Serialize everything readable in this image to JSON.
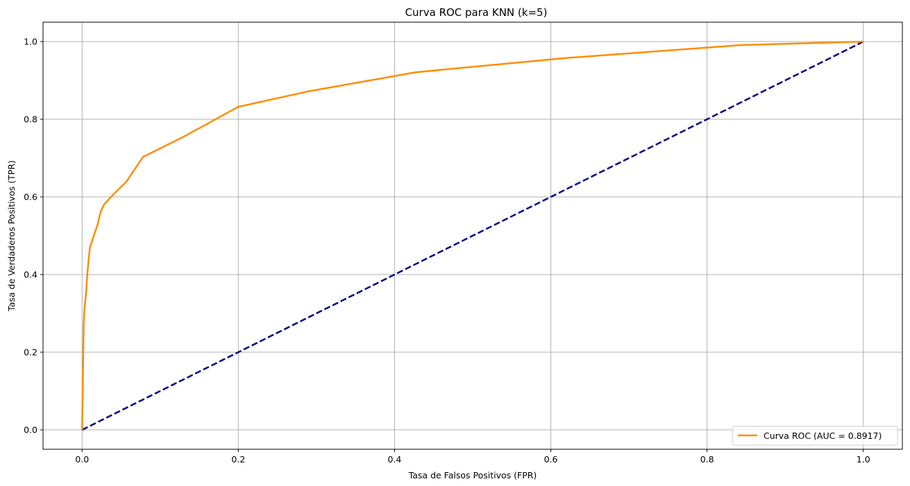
{
  "chart_data": {
    "type": "line",
    "title": "Curva ROC para KNN (k=5)",
    "xlabel": "Tasa de Falsos Positivos (FPR)",
    "ylabel": "Tasa de Verdaderos Positivos (TPR)",
    "xlim": [
      -0.05,
      1.05
    ],
    "ylim": [
      -0.05,
      1.05
    ],
    "x_ticks": [
      0.0,
      0.2,
      0.4,
      0.6,
      0.8,
      1.0
    ],
    "y_ticks": [
      0.0,
      0.2,
      0.4,
      0.6,
      0.8,
      1.0
    ],
    "x_tick_labels": [
      "0.0",
      "0.2",
      "0.4",
      "0.6",
      "0.8",
      "1.0"
    ],
    "y_tick_labels": [
      "0.0",
      "0.2",
      "0.4",
      "0.6",
      "0.8",
      "1.0"
    ],
    "grid": true,
    "legend_position": "lower-right",
    "series": [
      {
        "name": "Curva ROC (AUC = 0.8917)",
        "color": "#ff8c00",
        "style": "solid",
        "x": [
          0.0,
          0.001,
          0.002,
          0.003,
          0.005,
          0.007,
          0.01,
          0.015,
          0.02,
          0.024,
          0.028,
          0.037,
          0.057,
          0.078,
          0.13,
          0.2,
          0.29,
          0.427,
          0.615,
          0.843,
          1.0
        ],
        "y": [
          0.0,
          0.13,
          0.27,
          0.31,
          0.35,
          0.41,
          0.47,
          0.5,
          0.53,
          0.563,
          0.58,
          0.6,
          0.64,
          0.703,
          0.755,
          0.832,
          0.872,
          0.921,
          0.957,
          0.991,
          1.0
        ]
      },
      {
        "name": "",
        "color": "#000080",
        "style": "dashed",
        "x": [
          0.0,
          1.0
        ],
        "y": [
          0.0,
          1.0
        ]
      }
    ]
  }
}
